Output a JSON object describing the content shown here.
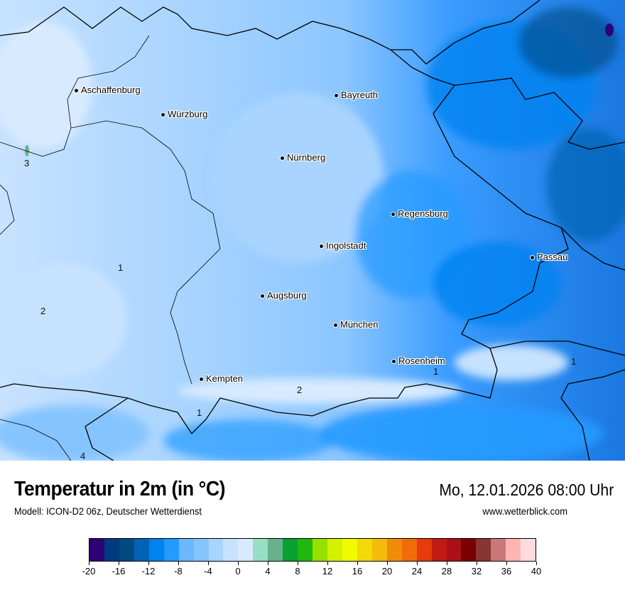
{
  "header": {
    "title": "Temperatur in 2m (in °C)",
    "subtitle": "Modell: ICON-D2 06z, Deutscher Wetterdienst",
    "datetime": "Mo, 12.01.2026 08:00 Uhr",
    "website": "www.wetterblick.com"
  },
  "map": {
    "cities": [
      "Aschaffenburg",
      "Würzburg",
      "Bayreuth",
      "Nürnberg",
      "Regensburg",
      "Ingolstadt",
      "Passau",
      "Augsburg",
      "München",
      "Rosenheim",
      "Kempten"
    ],
    "contour_labels": [
      "1",
      "2",
      "3",
      "1",
      "2",
      "1",
      "1",
      "4"
    ]
  },
  "legend": {
    "unit": "°C",
    "min": -20,
    "max": 40,
    "step": 2,
    "tick_labels": [
      "-20",
      "-16",
      "-12",
      "-8",
      "-4",
      "0",
      "4",
      "8",
      "12",
      "16",
      "20",
      "24",
      "28",
      "32",
      "36",
      "40"
    ],
    "colors": [
      "#2e0078",
      "#003a80",
      "#004a80",
      "#0062b2",
      "#0082f0",
      "#249aff",
      "#6cb8ff",
      "#86c4ff",
      "#a8d4ff",
      "#c6e2ff",
      "#d8eaff",
      "#98dec2",
      "#66b28c",
      "#08a030",
      "#20b810",
      "#98e000",
      "#d2f200",
      "#f0fa00",
      "#f4d808",
      "#f4bc08",
      "#f08c08",
      "#f06c0a",
      "#e83a0a",
      "#c01a12",
      "#aa1018",
      "#780000",
      "#8a3434",
      "#c87878",
      "#ffb4b4",
      "#ffdcdc"
    ]
  }
}
